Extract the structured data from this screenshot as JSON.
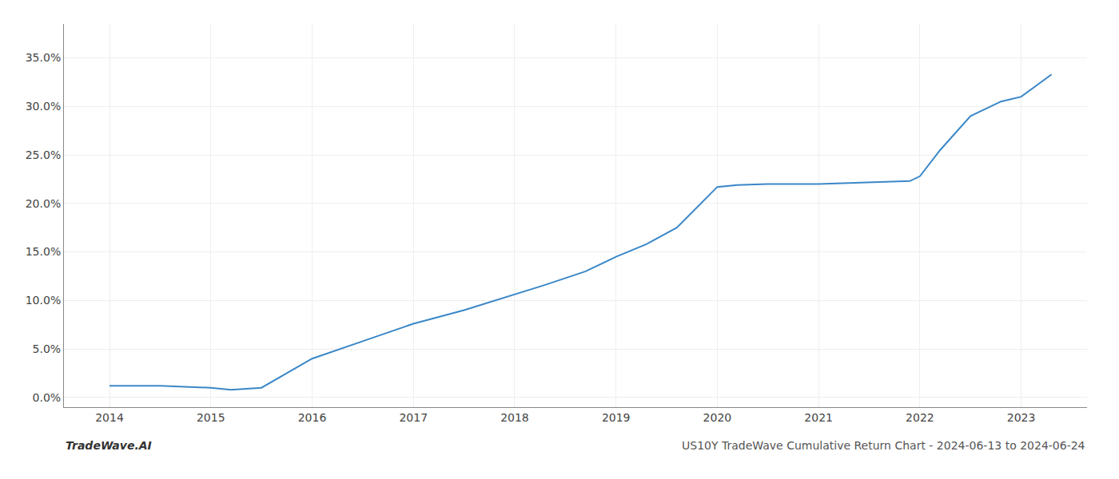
{
  "chart_data": {
    "type": "line",
    "x": [
      2014.0,
      2014.5,
      2015.0,
      2015.2,
      2015.5,
      2016.0,
      2016.5,
      2017.0,
      2017.5,
      2018.0,
      2018.3,
      2018.7,
      2019.0,
      2019.3,
      2019.6,
      2020.0,
      2020.2,
      2020.5,
      2021.0,
      2021.3,
      2021.6,
      2021.9,
      2022.0,
      2022.2,
      2022.5,
      2022.8,
      2023.0,
      2023.3
    ],
    "values": [
      0.012,
      0.012,
      0.01,
      0.008,
      0.01,
      0.04,
      0.058,
      0.076,
      0.09,
      0.106,
      0.116,
      0.13,
      0.145,
      0.158,
      0.175,
      0.217,
      0.219,
      0.22,
      0.22,
      0.221,
      0.222,
      0.223,
      0.228,
      0.255,
      0.29,
      0.305,
      0.31,
      0.333
    ],
    "color": "#3a87c8",
    "xlim": [
      2013.55,
      2023.65
    ],
    "xticks": [
      2014,
      2015,
      2016,
      2017,
      2018,
      2019,
      2020,
      2021,
      2022,
      2023
    ],
    "ylim": [
      -0.01,
      0.385
    ],
    "yticks": [
      {
        "value": 0.0,
        "label": "0.0%"
      },
      {
        "value": 0.05,
        "label": "5.0%"
      },
      {
        "value": 0.1,
        "label": "10.0%"
      },
      {
        "value": 0.15,
        "label": "15.0%"
      },
      {
        "value": 0.2,
        "label": "20.0%"
      },
      {
        "value": 0.25,
        "label": "25.0%"
      },
      {
        "value": 0.3,
        "label": "30.0%"
      },
      {
        "value": 0.35,
        "label": "35.0%"
      }
    ],
    "grid": true,
    "annotations": [
      "TradeWave.AI",
      "US10Y TradeWave Cumulative Return Chart - 2024-06-13 to 2024-06-24"
    ]
  }
}
